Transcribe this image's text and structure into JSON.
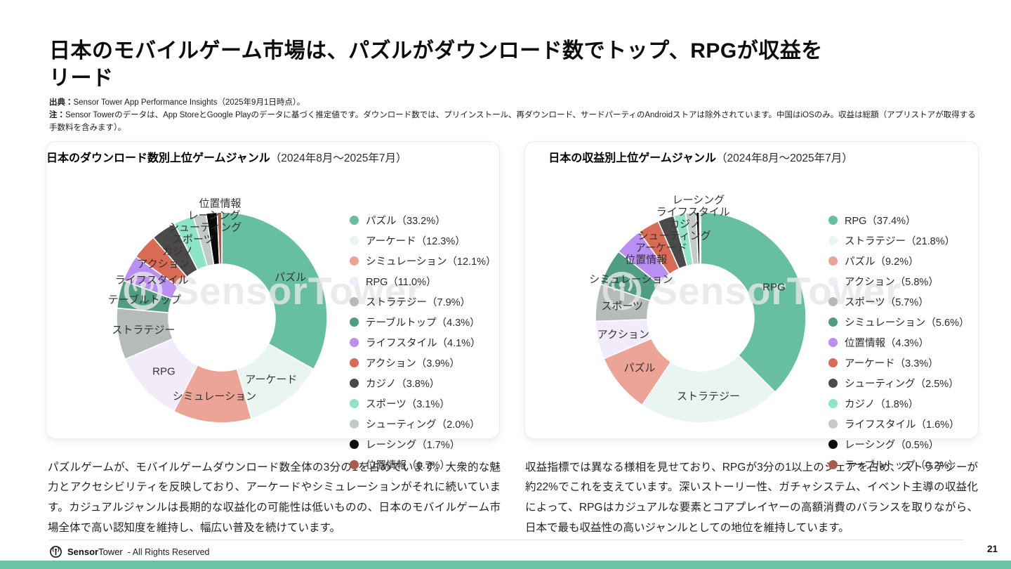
{
  "page": {
    "title_line1": "日本のモバイルゲーム市場は、パズルがダウンロード数でトップ、RPGが収益を",
    "title_line2": "リード",
    "source_label": "出典：",
    "source_text": "Sensor Tower App Performance Insights（2025年9月1日時点）。",
    "note_label": "注：",
    "note_text": "Sensor Towerのデータは、App StoreとGoogle Playのデータに基づく推定値です。ダウンロード数では、プリインストール、再ダウンロード、サードパーティのAndroidストアは除外されています。中国はiOSのみ。収益は総額（アプリストアが取得する手数料を含みます）。",
    "page_number": "21"
  },
  "watermark_text": "SensorTower",
  "footer": {
    "brand_bold": "Sensor",
    "brand_light": "Tower",
    "rights": "- All Rights Reserved"
  },
  "colors": {
    "accent_bar": "#6bc2a6",
    "palette": [
      "#66bfa3",
      "#e8f5f0",
      "#eba496",
      "#f2ecfa",
      "#b5bcb8",
      "#4f9d84",
      "#b98ff2",
      "#d96b54",
      "#4a4a4a",
      "#8de4c9",
      "#c4cbc7",
      "#0a0a0a",
      "#a95c4d"
    ],
    "watermark": "#e7e7e7",
    "label_text": "#333333"
  },
  "chart_data": [
    {
      "type": "pie",
      "donut": true,
      "title_bold": "日本のダウンロード数別上位ゲームジャンル",
      "title_period": "（2024年8月～2025年7月）",
      "start_angle": "top",
      "direction": "clockwise",
      "legend_position": "right",
      "categories": [
        "パズル",
        "アーケード",
        "シミュレーション",
        "RPG",
        "ストラテジー",
        "テーブルトップ",
        "ライフスタイル",
        "アクション",
        "カジノ",
        "スポーツ",
        "シューティング",
        "レーシング",
        "位置情報"
      ],
      "values": [
        33.2,
        12.3,
        12.1,
        11.0,
        7.9,
        4.3,
        4.1,
        3.9,
        3.8,
        3.1,
        2.0,
        1.7,
        0.7
      ],
      "label_on_chart": [
        true,
        true,
        true,
        true,
        true,
        true,
        true,
        true,
        true,
        true,
        true,
        true,
        true
      ],
      "commentary": "パズルゲームが、モバイルゲームダウンロード数全体の3分の1を占めています。大衆的な魅力とアクセシビリティを反映しており、アーケードやシミュレーションがそれに続いています。カジュアルジャンルは長期的な収益化の可能性は低いものの、日本のモバイルゲーム市場全体で高い認知度を維持し、幅広い普及を続けています。"
    },
    {
      "type": "pie",
      "donut": true,
      "title_bold": "日本の収益別上位ゲームジャンル",
      "title_period": "（2024年8月～2025年7月）",
      "start_angle": "top",
      "direction": "clockwise",
      "legend_position": "right",
      "categories": [
        "RPG",
        "ストラテジー",
        "パズル",
        "アクション",
        "スポーツ",
        "シミュレーション",
        "位置情報",
        "アーケード",
        "シューティング",
        "カジノ",
        "ライフスタイル",
        "レーシング",
        "テーブルトップ"
      ],
      "values": [
        37.4,
        21.8,
        9.2,
        5.8,
        5.7,
        5.6,
        4.3,
        3.3,
        2.5,
        1.8,
        1.6,
        0.5,
        0.2
      ],
      "label_on_chart": [
        true,
        true,
        true,
        true,
        true,
        true,
        true,
        true,
        true,
        true,
        true,
        true,
        false
      ],
      "commentary": "収益指標では異なる様相を見せており、RPGが3分の1以上のシェアを占め、ストラテジーが約22%でこれを支えています。深いストーリー性、ガチャシステム、イベント主導の収益化によって、RPGはカジュアルな要素とコアプレイヤーの高額消費のバランスを取りながら、日本で最も収益性の高いジャンルとしての地位を維持しています。"
    }
  ]
}
